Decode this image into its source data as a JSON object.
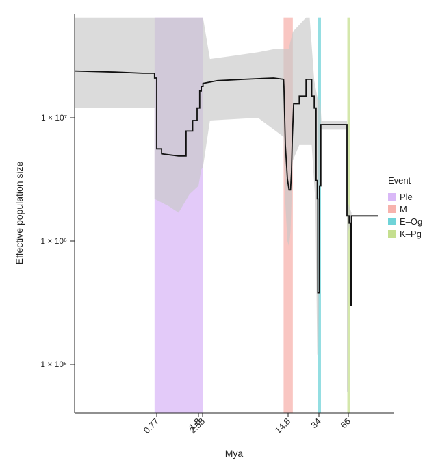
{
  "chart_data": {
    "type": "line",
    "title": "",
    "xlabel": "Mya",
    "ylabel": "Effective population size",
    "x_scale": "piecewise-log",
    "y_scale": "log",
    "x_ticks": [
      0.77,
      1.8,
      2.58,
      14.8,
      34,
      66
    ],
    "x_tick_labels": [
      "0.77",
      "1.8",
      "2.58",
      "14.8",
      "34",
      "66"
    ],
    "y_ticks": [
      100000,
      1000000,
      10000000
    ],
    "y_tick_labels": [
      "1 × 10⁵",
      "1 × 10⁶",
      "1 × 10⁷"
    ],
    "xlim": [
      0.04,
      250
    ],
    "ylim": [
      40000,
      65000000
    ],
    "grid": false,
    "legend": {
      "title": "Event",
      "position": "right",
      "entries": [
        {
          "label": "Ple",
          "color": "#d9b8f7"
        },
        {
          "label": "M",
          "color": "#f7b3ad"
        },
        {
          "label": "E–Og",
          "color": "#6fd3d8"
        },
        {
          "label": "K–Pg",
          "color": "#c5df8f"
        }
      ]
    },
    "events": [
      {
        "name": "Ple",
        "x_start": 0.72,
        "x_end": 2.6,
        "color": "#d9b8f7"
      },
      {
        "name": "M",
        "x_start": 13.5,
        "x_end": 16.8,
        "color": "#f7b3ad"
      },
      {
        "name": "E–Og",
        "x_start": 32.8,
        "x_end": 35.6,
        "color": "#6fd3d8"
      },
      {
        "name": "K–Pg",
        "x_start": 64.5,
        "x_end": 68.2,
        "color": "#c5df8f"
      }
    ],
    "series": [
      {
        "role": "median",
        "color": "#111111",
        "points": [
          [
            0.04,
            24000000
          ],
          [
            0.2,
            23500000
          ],
          [
            0.5,
            23000000
          ],
          [
            0.72,
            23000000
          ],
          [
            0.72,
            21000000
          ],
          [
            0.77,
            21000000
          ],
          [
            0.77,
            5600000
          ],
          [
            0.85,
            5600000
          ],
          [
            0.85,
            5100000
          ],
          [
            1.0,
            5000000
          ],
          [
            1.2,
            4900000
          ],
          [
            1.4,
            4900000
          ],
          [
            1.4,
            7800000
          ],
          [
            1.6,
            7800000
          ],
          [
            1.6,
            9500000
          ],
          [
            1.75,
            9500000
          ],
          [
            1.75,
            12000000
          ],
          [
            2.0,
            12000000
          ],
          [
            2.0,
            16500000
          ],
          [
            2.3,
            16500000
          ],
          [
            2.3,
            18000000
          ],
          [
            2.6,
            18000000
          ],
          [
            2.6,
            19000000
          ],
          [
            3.5,
            20000000
          ],
          [
            6.0,
            20500000
          ],
          [
            11.0,
            21000000
          ],
          [
            13.5,
            20500000
          ],
          [
            13.6,
            18000000
          ],
          [
            14.0,
            6000000
          ],
          [
            14.6,
            3200000
          ],
          [
            15.2,
            2600000
          ],
          [
            15.8,
            2600000
          ],
          [
            16.2,
            3600000
          ],
          [
            16.6,
            7000000
          ],
          [
            17.2,
            13000000
          ],
          [
            20.0,
            13000000
          ],
          [
            20.0,
            15000000
          ],
          [
            24.0,
            15000000
          ],
          [
            24.0,
            20500000
          ],
          [
            28.0,
            20500000
          ],
          [
            28.0,
            15000000
          ],
          [
            30.0,
            15000000
          ],
          [
            30.0,
            12000000
          ],
          [
            31.5,
            12000000
          ],
          [
            31.5,
            3100000
          ],
          [
            32.5,
            3100000
          ],
          [
            32.5,
            2200000
          ],
          [
            33.0,
            2200000
          ],
          [
            33.0,
            380000
          ],
          [
            34.5,
            380000
          ],
          [
            34.5,
            2800000
          ],
          [
            35.5,
            2800000
          ],
          [
            35.5,
            8800000
          ],
          [
            64.0,
            8800000
          ],
          [
            64.0,
            1600000
          ],
          [
            67.0,
            1600000
          ],
          [
            67.0,
            1400000
          ],
          [
            68.5,
            1400000
          ],
          [
            68.5,
            300000
          ],
          [
            70.0,
            300000
          ],
          [
            70.0,
            1600000
          ],
          [
            115.0,
            1600000
          ]
        ]
      },
      {
        "role": "ci-upper",
        "color": "#c8c8c8",
        "points": [
          [
            0.04,
            65000000
          ],
          [
            0.72,
            65000000
          ],
          [
            2.6,
            65000000
          ],
          [
            3.0,
            30000000
          ],
          [
            5.0,
            32000000
          ],
          [
            8.0,
            34000000
          ],
          [
            11.0,
            36000000
          ],
          [
            13.5,
            36000000
          ],
          [
            15.0,
            36000000
          ],
          [
            16.8,
            50000000
          ],
          [
            24.0,
            65000000
          ],
          [
            26.5,
            65000000
          ],
          [
            30.0,
            20000000
          ],
          [
            33.0,
            14000000
          ],
          [
            35.0,
            14000000
          ],
          [
            36.0,
            9500000
          ],
          [
            64.0,
            9500000
          ],
          [
            66.0,
            2000000
          ],
          [
            70.0,
            1700000
          ]
        ]
      },
      {
        "role": "ci-lower",
        "color": "#c8c8c8",
        "points": [
          [
            0.04,
            12000000
          ],
          [
            0.72,
            12000000
          ],
          [
            0.72,
            2200000
          ],
          [
            1.0,
            1900000
          ],
          [
            1.2,
            1700000
          ],
          [
            1.5,
            2400000
          ],
          [
            1.8,
            2800000
          ],
          [
            2.3,
            3800000
          ],
          [
            2.6,
            4000000
          ],
          [
            3.0,
            9500000
          ],
          [
            8.0,
            10000000
          ],
          [
            13.5,
            7000000
          ],
          [
            14.0,
            2000000
          ],
          [
            14.6,
            1000000
          ],
          [
            15.2,
            900000
          ],
          [
            15.8,
            1200000
          ],
          [
            16.8,
            4500000
          ],
          [
            20.0,
            6000000
          ],
          [
            28.0,
            6000000
          ],
          [
            31.0,
            2000000
          ],
          [
            32.5,
            120000
          ],
          [
            33.5,
            120000
          ],
          [
            34.5,
            700000
          ],
          [
            35.5,
            8000000
          ],
          [
            64.0,
            8000000
          ],
          [
            64.0,
            60000
          ],
          [
            66.0,
            60000
          ],
          [
            66.0,
            1200000
          ],
          [
            70.0,
            1500000
          ]
        ]
      }
    ]
  }
}
